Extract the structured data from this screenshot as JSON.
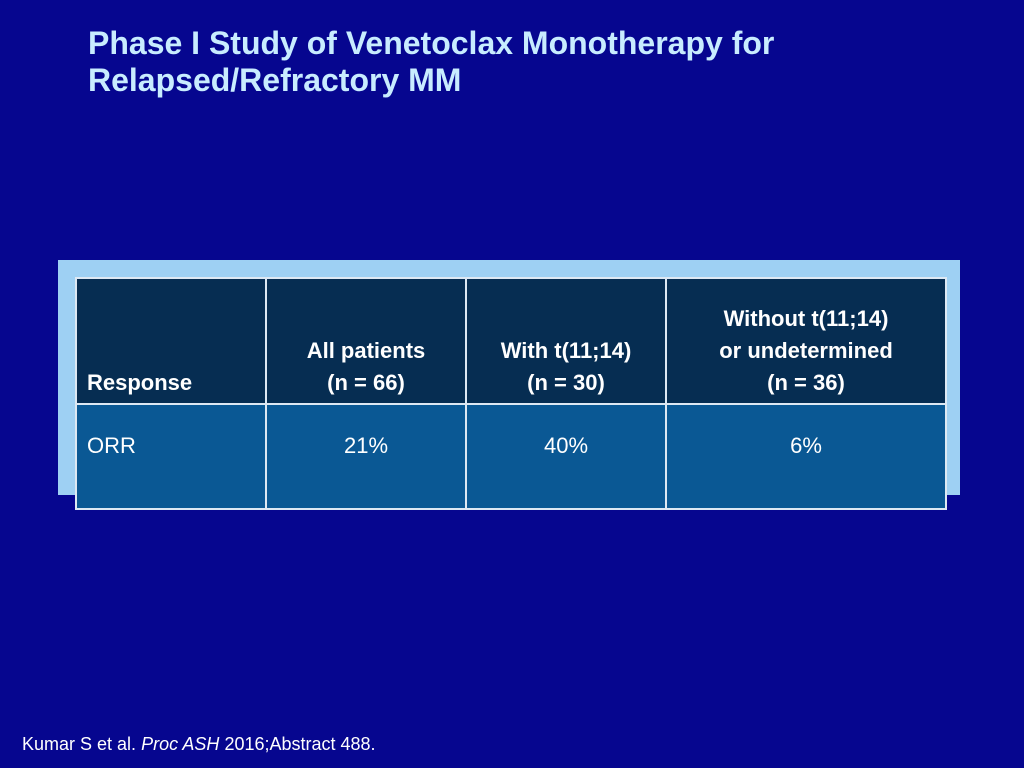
{
  "slide": {
    "title_line1": "Phase I Study of Venetoclax Monotherapy for",
    "title_line2": "Relapsed/Refractory MM",
    "colors": {
      "background": "#06068f",
      "title": "#c8ecff",
      "table_frame": "#9ed0f3",
      "header_fill": "#062d52",
      "row_fill": "#0a5894",
      "grid_line": "#dde8f3"
    }
  },
  "table": {
    "headers": [
      {
        "lines": [
          "Response"
        ]
      },
      {
        "lines": [
          "All patients",
          "(n = 66)"
        ]
      },
      {
        "lines": [
          "With t(11;14)",
          "(n = 30)"
        ]
      },
      {
        "lines": [
          "Without t(11;14)",
          "or undetermined",
          "(n = 36)"
        ]
      }
    ],
    "rows": [
      {
        "cells": [
          "ORR",
          "21%",
          "40%",
          "6%"
        ]
      }
    ]
  },
  "footnote": {
    "authors": "Kumar S et al.",
    "journal": "Proc ASH",
    "citation": "2016;Abstract 488."
  }
}
